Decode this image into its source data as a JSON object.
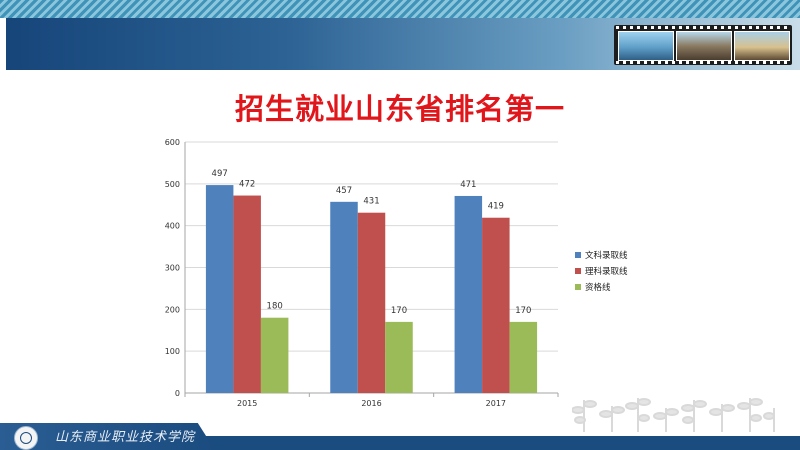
{
  "slide": {
    "title": "招生就业山东省排名第一",
    "footer_school": "山东商业职业技术学院"
  },
  "colors": {
    "title_red": "#e0161b",
    "header_navy": "#16457a",
    "series_blue": "#4f81bd",
    "series_red": "#c0504d",
    "series_green": "#9bbb59"
  },
  "icons": {
    "logo": "school-emblem-icon",
    "photos": "campus-photo-strip"
  },
  "chart_data": {
    "type": "bar",
    "title": "",
    "xlabel": "",
    "ylabel": "",
    "categories": [
      "2015",
      "2016",
      "2017"
    ],
    "series": [
      {
        "name": "文科录取线",
        "values": [
          497,
          457,
          471
        ],
        "color": "#4f81bd"
      },
      {
        "name": "理科录取线",
        "values": [
          472,
          431,
          419
        ],
        "color": "#c0504d"
      },
      {
        "name": "资格线",
        "values": [
          180,
          170,
          170
        ],
        "color": "#9bbb59"
      }
    ],
    "ylim": [
      0,
      600
    ],
    "yticks": [
      0,
      100,
      200,
      300,
      400,
      500,
      600
    ],
    "grid": true,
    "legend_position": "right",
    "data_labels": true
  }
}
